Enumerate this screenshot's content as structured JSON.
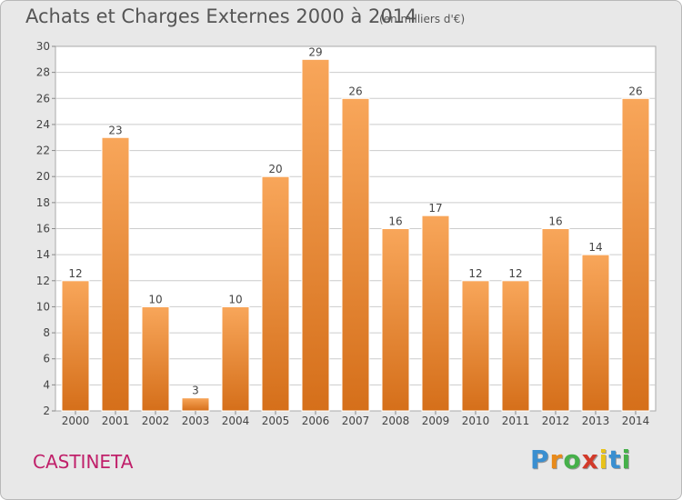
{
  "header": {
    "title": "Achats et Charges Externes 2000 à 2014",
    "subtitle": "(en milliers d'€)"
  },
  "footer": {
    "commune": "CASTINETA",
    "logo": {
      "letters": [
        "P",
        "r",
        "o",
        "x",
        "i",
        "t",
        "i"
      ],
      "colors": [
        "#3a8fd0",
        "#e88a1a",
        "#46b04a",
        "#d23a2a",
        "#e8c21a",
        "#3a8fd0",
        "#46b04a"
      ]
    }
  },
  "colors": {
    "bar_light": "#f8a65a",
    "bar_dark": "#d56f1a",
    "grid": "#cccccc",
    "plot_bg": "#ffffff",
    "text": "#444444"
  },
  "chart_data": {
    "type": "bar",
    "title": "Achats et Charges Externes 2000 à 2014",
    "categories": [
      "2000",
      "2001",
      "2002",
      "2003",
      "2004",
      "2005",
      "2006",
      "2007",
      "2008",
      "2009",
      "2010",
      "2011",
      "2012",
      "2013",
      "2014"
    ],
    "values": [
      12,
      23,
      10,
      3,
      10,
      20,
      29,
      26,
      16,
      17,
      12,
      12,
      16,
      14,
      26
    ],
    "ylim": [
      2,
      30
    ],
    "yticks": [
      2,
      4,
      6,
      8,
      10,
      12,
      14,
      16,
      18,
      20,
      22,
      24,
      26,
      28,
      30
    ],
    "grid": true,
    "legend": "none"
  }
}
